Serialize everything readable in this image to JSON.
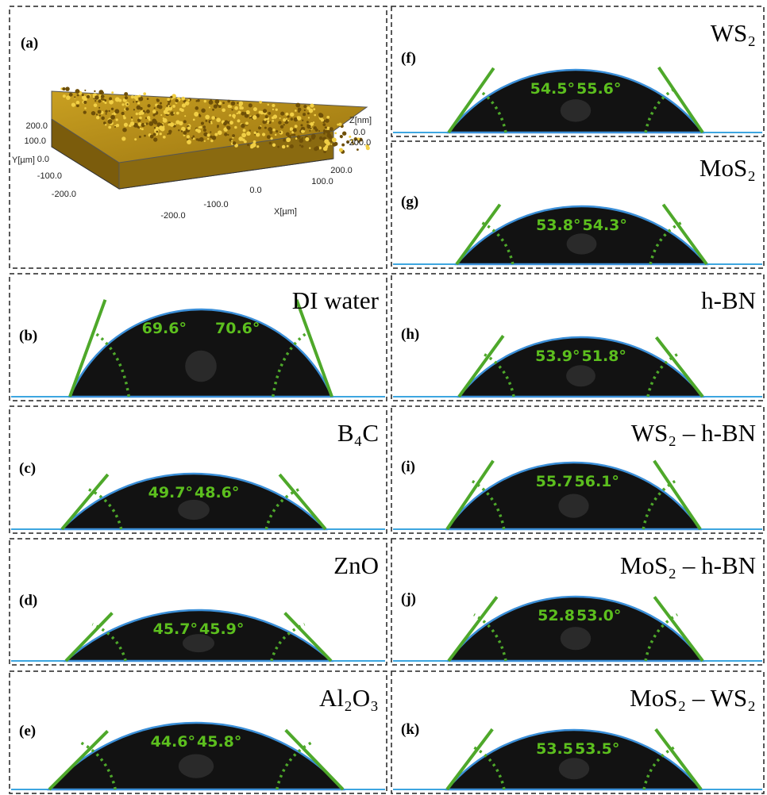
{
  "panels": [
    {
      "label": "(a)",
      "z_axis": {
        "title": "Z[nm]",
        "ticks": [
          "0.0",
          "-200.0"
        ]
      },
      "y_axis": {
        "title": "Y[µm]",
        "ticks": [
          "200.0",
          "100.0",
          "0.0",
          "-100.0",
          "-200.0"
        ]
      },
      "x_axis": {
        "title": "X[µm]",
        "ticks": [
          "200.0",
          "100.0",
          "0.0",
          "-100.0",
          "-200.0"
        ]
      }
    },
    {
      "label": "(b)",
      "title": "DI water",
      "left_angle": "69.6°",
      "right_angle": "70.6°"
    },
    {
      "label": "(c)",
      "title": "B₄C",
      "left_angle": "49.7°",
      "right_angle": "48.6°"
    },
    {
      "label": "(d)",
      "title": "ZnO",
      "left_angle": "45.7°",
      "right_angle": "45.9°"
    },
    {
      "label": "(e)",
      "title": "Al₂O₃",
      "left_angle": "44.6°",
      "right_angle": "45.8°"
    },
    {
      "label": "(f)",
      "title": "WS₂",
      "left_angle": "54.5°",
      "right_angle": "55.6°"
    },
    {
      "label": "(g)",
      "title": "MoS₂",
      "left_angle": "53.8°",
      "right_angle": "54.3°"
    },
    {
      "label": "(h)",
      "title": "h-BN",
      "left_angle": "53.9°",
      "right_angle": "51.8°"
    },
    {
      "label": "(i)",
      "title": "WS₂ – h-BN",
      "left_angle": "55.7",
      "right_angle": "56.1°"
    },
    {
      "label": "(j)",
      "title": "MoS₂ – h-BN",
      "left_angle": "52.8",
      "right_angle": "53.0°"
    },
    {
      "label": "(k)",
      "title": "MoS₂ – WS₂",
      "left_angle": "53.5",
      "right_angle": "53.5°"
    }
  ]
}
